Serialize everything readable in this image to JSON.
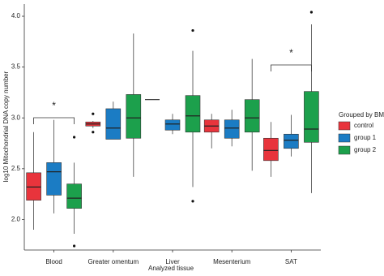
{
  "chart_data": {
    "type": "box",
    "x_label": "Analyzed tissue",
    "y_label": "log10 Mitochondrial DNA copy number",
    "categories": [
      "Blood",
      "Greater omentum",
      "Liver",
      "Mesenterium",
      "SAT"
    ],
    "ylim": [
      1.7,
      4.12
    ],
    "yticks": [
      {
        "value": 2,
        "label": "2.0"
      },
      {
        "value": 2.5,
        "label": "2.5"
      },
      {
        "value": 3,
        "label": "3.0"
      },
      {
        "value": 3.5,
        "label": "3.5"
      },
      {
        "value": 4,
        "label": "4.0"
      }
    ],
    "legend_title": "Grouped by BMI",
    "annotations": [
      "*",
      "*"
    ],
    "series": [
      {
        "name": "control",
        "color": "#e8343c",
        "boxes": [
          {
            "min": 1.9,
            "q1": 2.19,
            "median": 2.32,
            "q3": 2.46,
            "max": 2.86,
            "outliers": []
          },
          {
            "min": 2.9,
            "q1": 2.92,
            "median": 2.94,
            "q3": 2.96,
            "max": 2.97,
            "outliers": [
              3.04,
              2.86
            ]
          },
          {
            "min": 3.18,
            "q1": 3.18,
            "median": 3.18,
            "q3": 3.18,
            "max": 3.18,
            "outliers": []
          },
          {
            "min": 2.7,
            "q1": 2.86,
            "median": 2.92,
            "q3": 2.98,
            "max": 3.04,
            "outliers": []
          },
          {
            "min": 2.42,
            "q1": 2.58,
            "median": 2.68,
            "q3": 2.8,
            "max": 2.96,
            "outliers": []
          }
        ]
      },
      {
        "name": "group 1",
        "color": "#1b7cc4",
        "boxes": [
          {
            "min": 2.06,
            "q1": 2.24,
            "median": 2.47,
            "q3": 2.56,
            "max": 2.98,
            "outliers": []
          },
          {
            "min": 2.79,
            "q1": 2.79,
            "median": 2.9,
            "q3": 3.09,
            "max": 3.16,
            "outliers": []
          },
          {
            "min": 2.84,
            "q1": 2.88,
            "median": 2.94,
            "q3": 2.98,
            "max": 3.04,
            "outliers": []
          },
          {
            "min": 2.72,
            "q1": 2.8,
            "median": 2.9,
            "q3": 2.98,
            "max": 3.08,
            "outliers": []
          },
          {
            "min": 2.62,
            "q1": 2.7,
            "median": 2.78,
            "q3": 2.84,
            "max": 3.03,
            "outliers": []
          }
        ]
      },
      {
        "name": "group 2",
        "color": "#1ca04c",
        "boxes": [
          {
            "min": 1.86,
            "q1": 2.11,
            "median": 2.21,
            "q3": 2.35,
            "max": 2.56,
            "outliers": [
              2.81,
              1.74
            ]
          },
          {
            "min": 2.42,
            "q1": 2.8,
            "median": 3.0,
            "q3": 3.23,
            "max": 3.83,
            "outliers": []
          },
          {
            "min": 2.32,
            "q1": 2.86,
            "median": 3.02,
            "q3": 3.22,
            "max": 3.66,
            "outliers": [
              3.86,
              2.18
            ]
          },
          {
            "min": 2.48,
            "q1": 2.86,
            "median": 3.0,
            "q3": 3.18,
            "max": 3.58,
            "outliers": []
          },
          {
            "min": 2.26,
            "q1": 2.76,
            "median": 2.89,
            "q3": 3.26,
            "max": 3.92,
            "outliers": [
              4.04
            ]
          }
        ]
      }
    ]
  }
}
